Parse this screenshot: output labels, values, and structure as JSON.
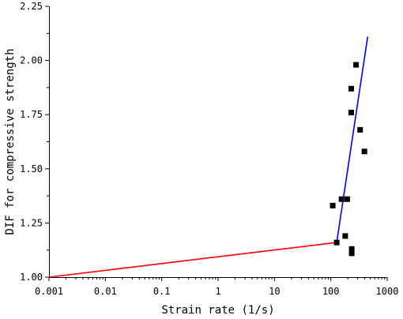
{
  "chart_data": {
    "type": "scatter",
    "title": "",
    "xlabel": "Strain rate (1/s)",
    "ylabel": "DIF for compressive strength",
    "x_scale": "log",
    "xlim": [
      0.001,
      1000
    ],
    "ylim": [
      1.0,
      2.25
    ],
    "x_ticks": [
      {
        "value": 0.001,
        "label": "0.001"
      },
      {
        "value": 0.01,
        "label": "0.01"
      },
      {
        "value": 0.1,
        "label": "0.1"
      },
      {
        "value": 1,
        "label": "1"
      },
      {
        "value": 10,
        "label": "10"
      },
      {
        "value": 100,
        "label": "100"
      },
      {
        "value": 1000,
        "label": "1000"
      }
    ],
    "y_ticks": [
      {
        "value": 1.0,
        "label": "1.00"
      },
      {
        "value": 1.25,
        "label": "1.25"
      },
      {
        "value": 1.5,
        "label": "1.50"
      },
      {
        "value": 1.75,
        "label": "1.75"
      },
      {
        "value": 2.0,
        "label": "2.00"
      },
      {
        "value": 2.25,
        "label": "2.25"
      }
    ],
    "grid": false,
    "legend": "none",
    "series": [
      {
        "kind": "points",
        "color": "#000000",
        "marker": "square",
        "points": [
          {
            "x": 108,
            "y": 1.33
          },
          {
            "x": 127,
            "y": 1.16
          },
          {
            "x": 155,
            "y": 1.36
          },
          {
            "x": 180,
            "y": 1.19
          },
          {
            "x": 195,
            "y": 1.36
          },
          {
            "x": 230,
            "y": 1.87
          },
          {
            "x": 230,
            "y": 1.76
          },
          {
            "x": 235,
            "y": 1.13
          },
          {
            "x": 235,
            "y": 1.11
          },
          {
            "x": 280,
            "y": 1.98
          },
          {
            "x": 330,
            "y": 1.68
          },
          {
            "x": 395,
            "y": 1.58
          }
        ]
      },
      {
        "kind": "line",
        "color": "#ff0000",
        "points": [
          {
            "x": 0.001,
            "y": 1.0
          },
          {
            "x": 127,
            "y": 1.16
          }
        ]
      },
      {
        "kind": "line",
        "color": "#0000ff",
        "points": [
          {
            "x": 127,
            "y": 1.16
          },
          {
            "x": 450,
            "y": 2.11
          }
        ]
      }
    ]
  }
}
